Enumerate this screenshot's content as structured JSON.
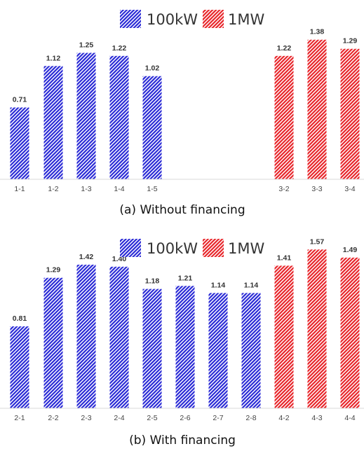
{
  "chart_data": [
    {
      "type": "bar",
      "caption": "(a) Without financing",
      "categories": [
        "1-1",
        "1-2",
        "1-3",
        "1-4",
        "1-5",
        "3-2",
        "3-3",
        "3-4"
      ],
      "values": [
        0.71,
        1.12,
        1.25,
        1.22,
        1.02,
        1.22,
        1.38,
        1.29
      ],
      "value_labels": [
        "0.71",
        "1.12",
        "1.25",
        "1.22",
        "1.02",
        "1.22",
        "1.38",
        "1.29"
      ],
      "groups": [
        "100kW",
        "100kW",
        "100kW",
        "100kW",
        "100kW",
        "1MW",
        "1MW",
        "1MW"
      ],
      "legend": [
        {
          "name": "100kW",
          "color": "#2b2bd6",
          "pattern": "diagonal-hatch"
        },
        {
          "name": "1MW",
          "color": "#e8262b",
          "pattern": "diagonal-hatch"
        }
      ],
      "legend_position": "top-center",
      "ylim": [
        0,
        1.6
      ],
      "grid": false,
      "y_axis_shown": false
    },
    {
      "type": "bar",
      "caption": "(b) With financing",
      "categories": [
        "2-1",
        "2-2",
        "2-3",
        "2-4",
        "2-5",
        "2-6",
        "2-7",
        "2-8",
        "4-2",
        "4-3",
        "4-4"
      ],
      "values": [
        0.81,
        1.29,
        1.42,
        1.4,
        1.18,
        1.21,
        1.14,
        1.14,
        1.41,
        1.57,
        1.49
      ],
      "value_labels": [
        "0.81",
        "1.29",
        "1.42",
        "1.40",
        "1.18",
        "1.21",
        "1.14",
        "1.14",
        "1.41",
        "1.57",
        "1.49"
      ],
      "groups": [
        "100kW",
        "100kW",
        "100kW",
        "100kW",
        "100kW",
        "100kW",
        "100kW",
        "100kW",
        "1MW",
        "1MW",
        "1MW"
      ],
      "legend": [
        {
          "name": "100kW",
          "color": "#2b2bd6",
          "pattern": "diagonal-hatch"
        },
        {
          "name": "1MW",
          "color": "#e8262b",
          "pattern": "diagonal-hatch"
        }
      ],
      "legend_position": "top-center",
      "ylim": [
        0,
        1.8
      ],
      "grid": false,
      "y_axis_shown": false
    }
  ]
}
